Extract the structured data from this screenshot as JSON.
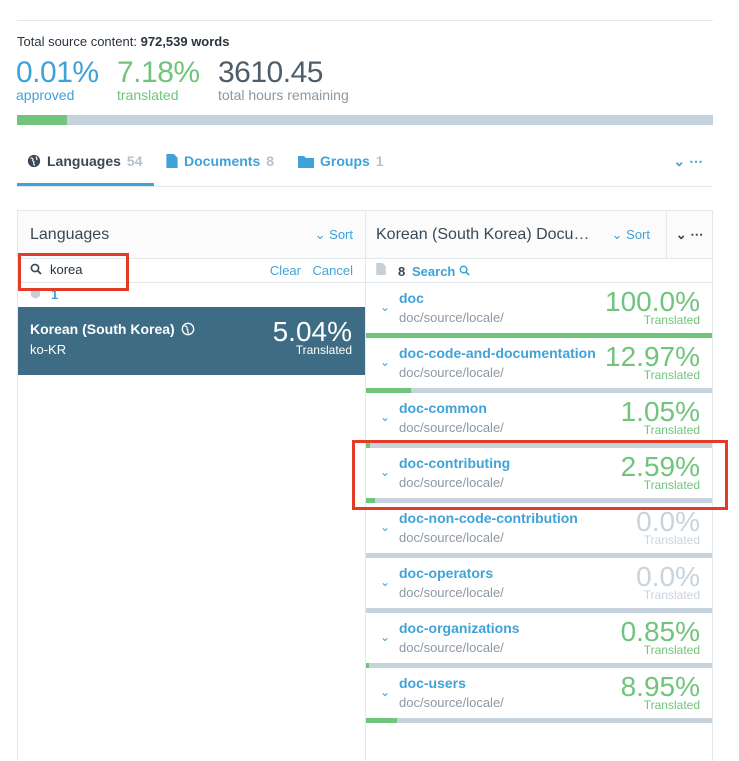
{
  "summary": {
    "total_label": "Total source content:",
    "total_value": "972,539 words",
    "approved_pct": "0.01%",
    "approved_label": "approved",
    "translated_pct": "7.18%",
    "translated_label": "translated",
    "hours_value": "3610.45",
    "hours_label": "total hours remaining",
    "progress_fraction": 0.0718
  },
  "tabs": [
    {
      "label": "Languages",
      "count": "54",
      "icon": "globe-icon",
      "active": true
    },
    {
      "label": "Documents",
      "count": "8",
      "icon": "document-icon",
      "active": false
    },
    {
      "label": "Groups",
      "count": "1",
      "icon": "folder-icon",
      "active": false
    }
  ],
  "languages_panel": {
    "title": "Languages",
    "sort_label": "Sort",
    "search_value": "korea",
    "clear_label": "Clear",
    "cancel_label": "Cancel",
    "result_count": "1",
    "items": [
      {
        "name": "Korean (South Korea)",
        "code": "ko-KR",
        "percent": "5.04%",
        "percent_label": "Translated"
      }
    ]
  },
  "documents_panel": {
    "title": "Korean (South Korea) Documents",
    "sort_label": "Sort",
    "doc_count": "8",
    "search_label": "Search",
    "items": [
      {
        "name": "doc",
        "path": "doc/source/locale/",
        "percent": "100.0%",
        "label": "Translated",
        "fraction": 1.0
      },
      {
        "name": "doc-code-and-documentation",
        "path": "doc/source/locale/",
        "percent": "12.97%",
        "label": "Translated",
        "fraction": 0.1297
      },
      {
        "name": "doc-common",
        "path": "doc/source/locale/",
        "percent": "1.05%",
        "label": "Translated",
        "fraction": 0.0105
      },
      {
        "name": "doc-contributing",
        "path": "doc/source/locale/",
        "percent": "2.59%",
        "label": "Translated",
        "fraction": 0.0259
      },
      {
        "name": "doc-non-code-contribution",
        "path": "doc/source/locale/",
        "percent": "0.0%",
        "label": "Translated",
        "fraction": 0.0
      },
      {
        "name": "doc-operators",
        "path": "doc/source/locale/",
        "percent": "0.0%",
        "label": "Translated",
        "fraction": 0.0
      },
      {
        "name": "doc-organizations",
        "path": "doc/source/locale/",
        "percent": "0.85%",
        "label": "Translated",
        "fraction": 0.0085
      },
      {
        "name": "doc-users",
        "path": "doc/source/locale/",
        "percent": "8.95%",
        "label": "Translated",
        "fraction": 0.0895
      }
    ]
  },
  "colors": {
    "accent": "#3fa2d8",
    "success": "#70c47c",
    "selected_row": "#3d6c84",
    "highlight": "#e23b26"
  }
}
